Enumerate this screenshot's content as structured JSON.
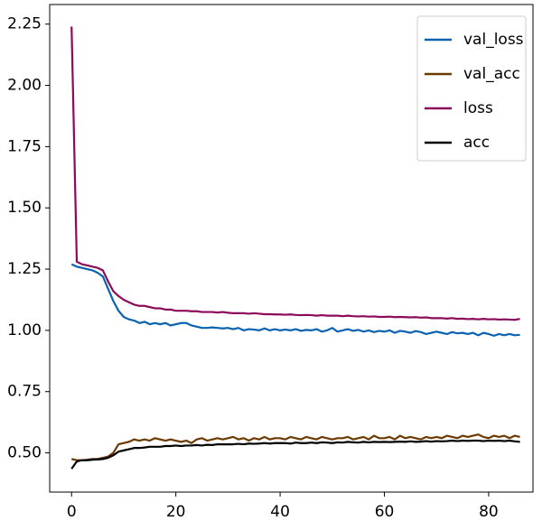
{
  "chart_data": {
    "type": "line",
    "x": [
      0,
      1,
      2,
      3,
      4,
      5,
      6,
      7,
      8,
      9,
      10,
      11,
      12,
      13,
      14,
      15,
      16,
      17,
      18,
      19,
      20,
      21,
      22,
      23,
      24,
      25,
      26,
      27,
      28,
      29,
      30,
      31,
      32,
      33,
      34,
      35,
      36,
      37,
      38,
      39,
      40,
      41,
      42,
      43,
      44,
      45,
      46,
      47,
      48,
      49,
      50,
      51,
      52,
      53,
      54,
      55,
      56,
      57,
      58,
      59,
      60,
      61,
      62,
      63,
      64,
      65,
      66,
      67,
      68,
      69,
      70,
      71,
      72,
      73,
      74,
      75,
      76,
      77,
      78,
      79,
      80,
      81,
      82,
      83,
      84,
      85,
      86
    ],
    "series": [
      {
        "name": "val_loss",
        "color": "#0a62b0",
        "values": [
          1.27,
          1.26,
          1.255,
          1.25,
          1.245,
          1.235,
          1.22,
          1.17,
          1.12,
          1.08,
          1.055,
          1.045,
          1.04,
          1.03,
          1.035,
          1.025,
          1.03,
          1.025,
          1.03,
          1.02,
          1.025,
          1.03,
          1.03,
          1.02,
          1.015,
          1.01,
          1.01,
          1.012,
          1.01,
          1.008,
          1.01,
          1.005,
          1.01,
          1.0,
          1.005,
          1.003,
          1.0,
          1.008,
          1.0,
          1.005,
          1.0,
          1.003,
          1.0,
          1.005,
          0.998,
          1.002,
          1.0,
          1.005,
          0.995,
          1.0,
          1.01,
          0.995,
          1.0,
          1.005,
          0.998,
          1.002,
          0.995,
          1.0,
          0.993,
          0.998,
          0.995,
          1.0,
          0.99,
          0.998,
          0.995,
          0.99,
          0.997,
          0.993,
          0.985,
          0.99,
          0.995,
          0.99,
          0.985,
          0.993,
          0.988,
          0.99,
          0.985,
          0.99,
          0.98,
          0.99,
          0.985,
          0.978,
          0.985,
          0.98,
          0.985,
          0.98,
          0.982
        ]
      },
      {
        "name": "val_acc",
        "color": "#6b3a00",
        "values": [
          0.475,
          0.47,
          0.47,
          0.472,
          0.475,
          0.475,
          0.48,
          0.485,
          0.5,
          0.535,
          0.54,
          0.545,
          0.555,
          0.55,
          0.555,
          0.55,
          0.56,
          0.555,
          0.55,
          0.555,
          0.55,
          0.545,
          0.55,
          0.54,
          0.555,
          0.56,
          0.55,
          0.555,
          0.56,
          0.555,
          0.56,
          0.565,
          0.555,
          0.56,
          0.55,
          0.56,
          0.555,
          0.565,
          0.555,
          0.56,
          0.56,
          0.555,
          0.565,
          0.56,
          0.555,
          0.565,
          0.56,
          0.555,
          0.565,
          0.56,
          0.555,
          0.56,
          0.56,
          0.565,
          0.555,
          0.56,
          0.565,
          0.555,
          0.57,
          0.56,
          0.56,
          0.565,
          0.555,
          0.57,
          0.56,
          0.565,
          0.56,
          0.555,
          0.565,
          0.56,
          0.565,
          0.56,
          0.57,
          0.565,
          0.56,
          0.57,
          0.565,
          0.57,
          0.575,
          0.565,
          0.56,
          0.57,
          0.565,
          0.57,
          0.56,
          0.57,
          0.565
        ]
      },
      {
        "name": "loss",
        "color": "#8b0a5a",
        "values": [
          2.24,
          1.28,
          1.27,
          1.265,
          1.26,
          1.255,
          1.245,
          1.2,
          1.16,
          1.14,
          1.125,
          1.115,
          1.105,
          1.1,
          1.1,
          1.095,
          1.09,
          1.09,
          1.085,
          1.085,
          1.08,
          1.08,
          1.08,
          1.078,
          1.078,
          1.075,
          1.075,
          1.075,
          1.073,
          1.075,
          1.072,
          1.07,
          1.07,
          1.07,
          1.068,
          1.07,
          1.068,
          1.066,
          1.066,
          1.065,
          1.065,
          1.064,
          1.065,
          1.063,
          1.062,
          1.063,
          1.062,
          1.06,
          1.062,
          1.06,
          1.06,
          1.06,
          1.058,
          1.06,
          1.058,
          1.057,
          1.058,
          1.056,
          1.057,
          1.055,
          1.055,
          1.056,
          1.054,
          1.055,
          1.054,
          1.053,
          1.054,
          1.052,
          1.053,
          1.05,
          1.05,
          1.05,
          1.048,
          1.05,
          1.047,
          1.048,
          1.046,
          1.047,
          1.045,
          1.047,
          1.045,
          1.046,
          1.044,
          1.045,
          1.044,
          1.043,
          1.047
        ]
      },
      {
        "name": "acc",
        "color": "#000000",
        "values": [
          0.435,
          0.465,
          0.47,
          0.47,
          0.472,
          0.473,
          0.475,
          0.48,
          0.49,
          0.505,
          0.51,
          0.515,
          0.52,
          0.52,
          0.522,
          0.525,
          0.525,
          0.525,
          0.528,
          0.528,
          0.53,
          0.528,
          0.53,
          0.53,
          0.532,
          0.53,
          0.533,
          0.532,
          0.535,
          0.535,
          0.535,
          0.535,
          0.537,
          0.535,
          0.538,
          0.537,
          0.538,
          0.54,
          0.538,
          0.54,
          0.54,
          0.54,
          0.538,
          0.542,
          0.54,
          0.54,
          0.542,
          0.54,
          0.543,
          0.542,
          0.54,
          0.543,
          0.542,
          0.545,
          0.543,
          0.542,
          0.545,
          0.543,
          0.545,
          0.544,
          0.545,
          0.544,
          0.545,
          0.546,
          0.545,
          0.547,
          0.545,
          0.546,
          0.548,
          0.546,
          0.548,
          0.547,
          0.548,
          0.55,
          0.548,
          0.55,
          0.549,
          0.55,
          0.55,
          0.548,
          0.55,
          0.549,
          0.55,
          0.548,
          0.55,
          0.547,
          0.545
        ]
      }
    ],
    "xlim": [
      -4.2,
      88.5
    ],
    "xticks": [
      0,
      20,
      40,
      60,
      80
    ],
    "ylim": [
      0.34,
      2.33
    ],
    "yticks": [
      {
        "value": 0.5,
        "label": "0.50"
      },
      {
        "value": 0.75,
        "label": "0.75"
      },
      {
        "value": 1,
        "label": "1.00"
      },
      {
        "value": 1.25,
        "label": "1.25"
      },
      {
        "value": 1.5,
        "label": "1.50"
      },
      {
        "value": 1.75,
        "label": "1.75"
      },
      {
        "value": 2,
        "label": "2.00"
      },
      {
        "value": 2.25,
        "label": "2.25"
      }
    ],
    "legend": "upper right"
  }
}
